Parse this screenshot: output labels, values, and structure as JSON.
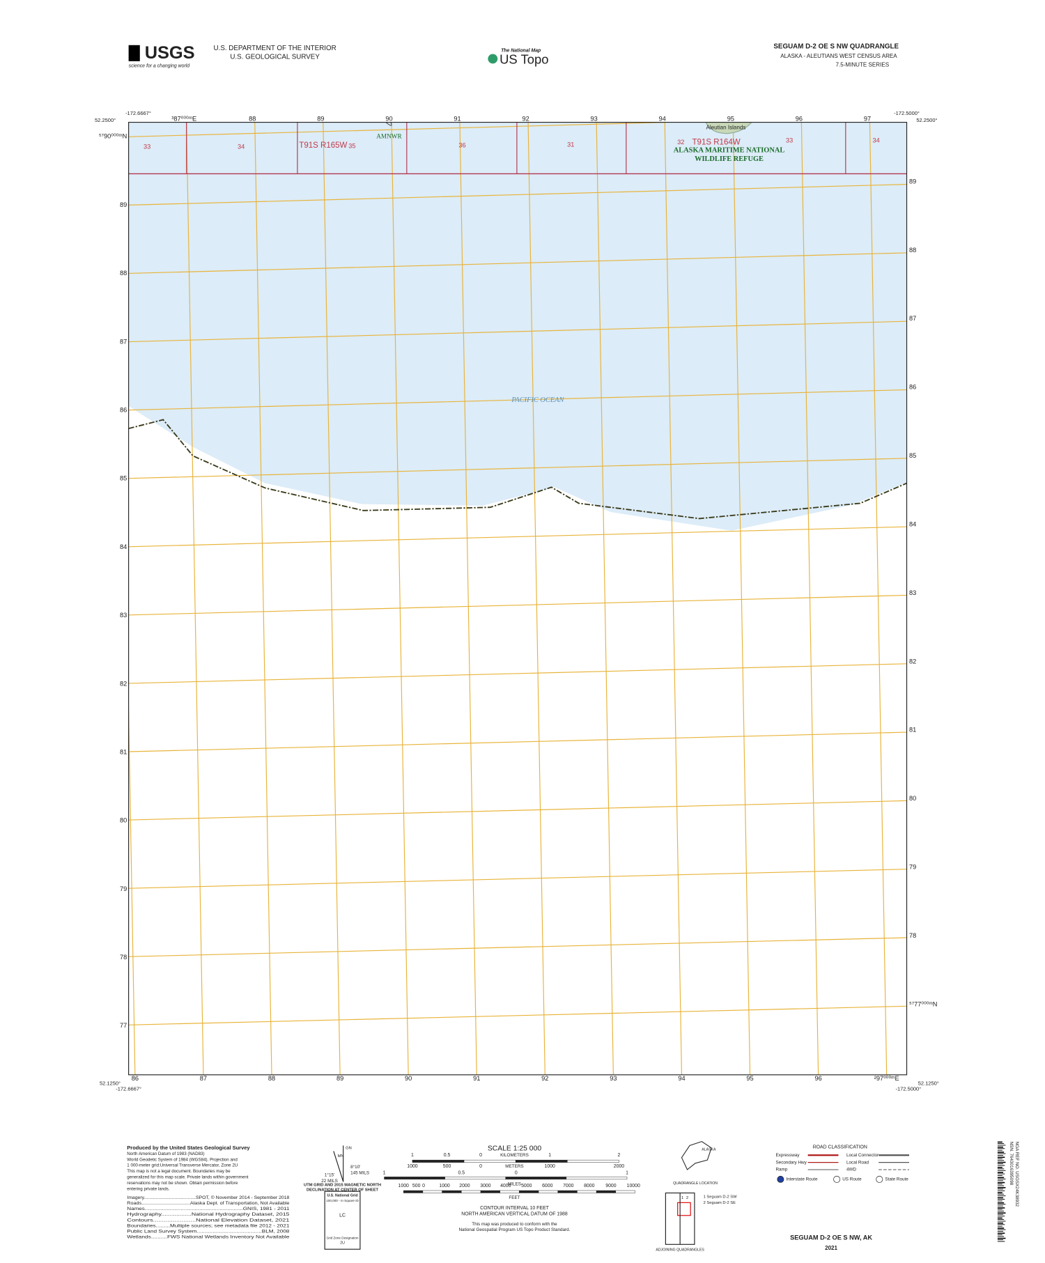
{
  "header": {
    "logo": "USGS",
    "tagline": "science for a changing world",
    "agency": [
      "U.S. DEPARTMENT OF THE INTERIOR",
      "U.S. GEOLOGICAL SURVEY"
    ],
    "national_map": "The National Map",
    "product": "US Topo",
    "title": "SEGUAM D-2 OE S NW QUADRANGLE",
    "subtitle": "ALASKA - ALEUTIANS WEST CENSUS AREA",
    "series": "7.5-MINUTE SERIES"
  },
  "map": {
    "corners": {
      "top_left_lon": "-172.6667°",
      "top_left_lat": "52.2500°",
      "top_right_lon": "-172.5000°",
      "top_right_lat": "52.2500°",
      "bottom_left_lat": "52.1250°",
      "bottom_left_lon": "-172.6667°",
      "bottom_right_lon": "-172.5000°",
      "bottom_right_lat": "52.1250°"
    },
    "top_easting": [
      "³87⁰⁰⁰ᵐE",
      "88",
      "89",
      "90",
      "91",
      "92",
      "93",
      "94",
      "95",
      "96",
      "97"
    ],
    "bottom_easting": [
      "86",
      "87",
      "88",
      "89",
      "90",
      "91",
      "92",
      "93",
      "94",
      "95",
      "96",
      "²97⁰⁰⁰ᵐE"
    ],
    "left_northing": [
      "⁵⁷90⁰⁰⁰ᵐN",
      "89",
      "88",
      "87",
      "86",
      "85",
      "84",
      "83",
      "82",
      "81",
      "80",
      "79",
      "78",
      "77"
    ],
    "right_northing": [
      "89",
      "88",
      "87",
      "86",
      "85",
      "84",
      "83",
      "82",
      "81",
      "80",
      "79",
      "78",
      "⁵⁷77⁰⁰⁰ᵐN"
    ],
    "sections": [
      "33",
      "34",
      "35",
      "36",
      "31",
      "32",
      "33",
      "34"
    ],
    "townships": [
      "T91S R165W",
      "T91S R164W"
    ],
    "refuge_short": "AMNWR",
    "refuge": [
      "ALASKA MARITIME NATIONAL",
      "WILDLIFE REFUGE"
    ],
    "island": "Aleutian Islands",
    "water": "PACIFIC OCEAN"
  },
  "footer": {
    "credits": [
      "Produced by the United States Geological Survey",
      "North American Datum of 1983 (NAD83)",
      "World Geodetic System of 1984 (WGS84). Projection and",
      "1 000-meter grid:Universal Transverse Mercator, Zone 2U",
      "This map is not a legal document. Boundaries may be",
      "generalized for this map scale. Private lands within government",
      "reservations may not be shown. Obtain permission before",
      "entering private lands."
    ],
    "sources": [
      "Imagery.......................................SPOT, © November 2014 - September 2018",
      "Roads...................................Alaska Dept. of Transportation, Not Available",
      "Names...............................................................GNIS, 1981 - 2011",
      "Hydrography..................National Hydrography Dataset, 2015",
      "Contours........................National Elevation Dataset, 2021",
      "Boundaries.........Multiple sources; see metadata file 2012 - 2021",
      "Public Land Survey System.........................................BLM, 2008",
      "Wetlands..........FWS National Wetlands Inventory Not Available"
    ],
    "declination": {
      "gn": "GN",
      "mn": "MN",
      "mn_angle": "8°10'",
      "mn_mils": "145 MILS",
      "gn_angle": "1°15'",
      "gn_mils": "22 MILS",
      "caption": [
        "UTM GRID AND 2015 MAGNETIC NORTH",
        "DECLINATION AT CENTER OF SHEET"
      ]
    },
    "grid_box": {
      "title": "U.S. National Grid",
      "square": "100,000 - m Square ID",
      "square_id": "LC",
      "zone": "Grid Zone Designation",
      "zone_id": "2U"
    },
    "scale": {
      "title": "SCALE 1:25 000",
      "kilometers": "KILOMETERS",
      "km_ticks": [
        "1",
        "0.5",
        "0",
        "1",
        "2"
      ],
      "meters": "METERS",
      "m_ticks": [
        "1000",
        "500",
        "0",
        "1000",
        "2000"
      ],
      "miles": "MILES",
      "mi_ticks": [
        "1",
        "0.5",
        "0",
        "1"
      ],
      "feet": "FEET",
      "ft_ticks": [
        "1000",
        "500",
        "0",
        "1000",
        "2000",
        "3000",
        "4000",
        "5000",
        "6000",
        "7000",
        "8000",
        "9000",
        "10000"
      ]
    },
    "contour": [
      "CONTOUR INTERVAL 10 FEET",
      "NORTH AMERICAN VERTICAL DATUM OF 1988"
    ],
    "standard": [
      "This map was produced to conform with the",
      "National Geospatial Program US Topo Product Standard."
    ],
    "location": {
      "state": "ALASKA",
      "caption": "QUADRANGLE LOCATION"
    },
    "adjoining": {
      "cells": [
        "1",
        "2"
      ],
      "names": [
        "1 Seguam D-2 SW",
        "2 Seguam D-2 SE"
      ],
      "caption": "ADJOINING QUADRANGLES"
    },
    "roads": {
      "title": "ROAD CLASSIFICATION",
      "items": [
        "Expressway",
        "Local Connector",
        "Secondary Hwy",
        "Local Road",
        "Ramp",
        "4WD"
      ],
      "routes": [
        "Interstate Route",
        "US Route",
        "State Route"
      ]
    },
    "sheet_name": "SEGUAM D-2 OE S NW, AK",
    "year": "2021",
    "barcode": [
      "NSN. 7643016395098",
      "NGA REF NO. USGSX24K38932"
    ]
  }
}
